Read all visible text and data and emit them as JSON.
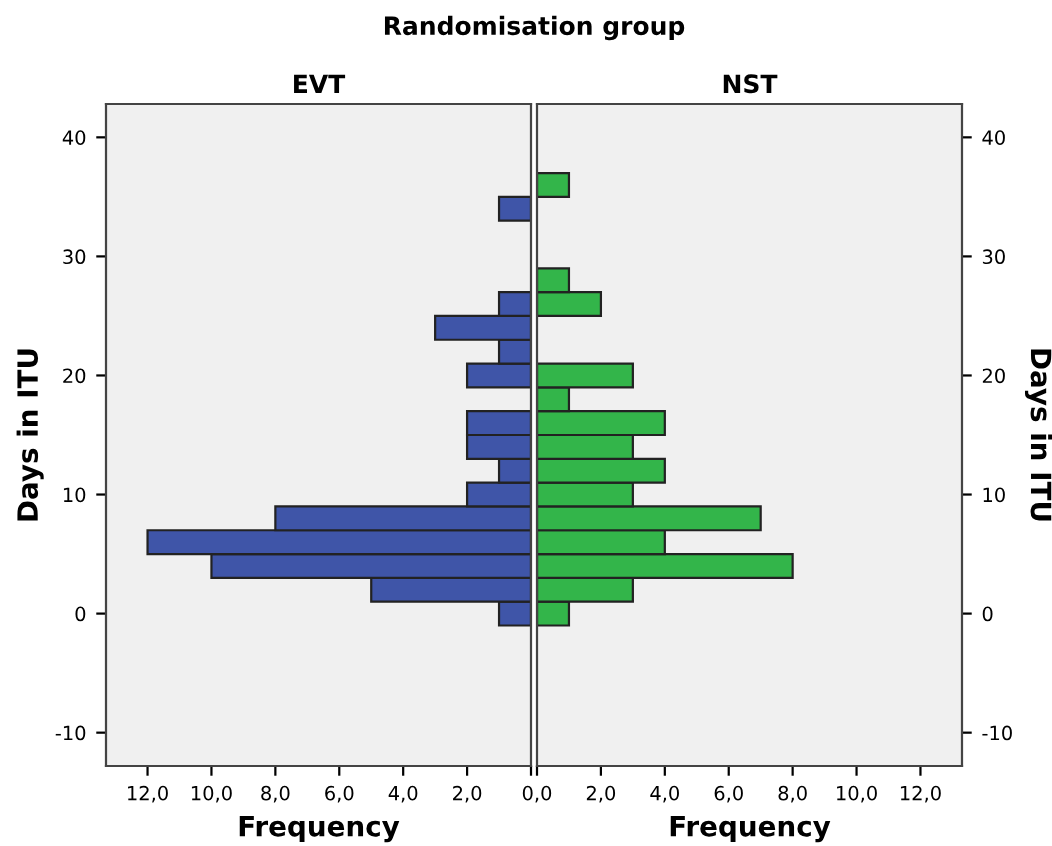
{
  "chart_data": [
    {
      "type": "bar",
      "orientation": "horizontal",
      "title": "EVT",
      "annotations": [
        "Randomisation group"
      ],
      "xlabel": "Frequency",
      "ylabel": "Days in ITU",
      "x": [
        0,
        2,
        4,
        6,
        8,
        10,
        12,
        14,
        16,
        18,
        20,
        22,
        24,
        26,
        28,
        30,
        32,
        34,
        36
      ],
      "values": [
        1,
        5,
        10,
        12,
        8,
        2,
        1,
        2,
        2,
        0,
        2,
        1,
        3,
        1,
        0,
        0,
        0,
        1,
        0
      ],
      "color": "#3f55a8",
      "xlim": [
        13.3,
        0
      ],
      "xticks": [
        {
          "value": 12,
          "label": "12,0"
        },
        {
          "value": 10,
          "label": "10,0"
        },
        {
          "value": 8,
          "label": "8,0"
        },
        {
          "value": 6,
          "label": "6,0"
        },
        {
          "value": 4,
          "label": "4,0"
        },
        {
          "value": 2,
          "label": "2,0"
        },
        {
          "value": 0,
          "label": null
        }
      ],
      "ylim": [
        -12.8,
        42.8
      ],
      "yticks": [
        -10,
        0,
        10,
        20,
        30,
        40
      ]
    },
    {
      "type": "bar",
      "orientation": "horizontal",
      "title": "NST",
      "xlabel": "Frequency",
      "ylabel": "Days in ITU",
      "x": [
        0,
        2,
        4,
        6,
        8,
        10,
        12,
        14,
        16,
        18,
        20,
        22,
        24,
        26,
        28,
        30,
        32,
        34,
        36
      ],
      "values": [
        1,
        3,
        8,
        4,
        7,
        3,
        4,
        3,
        4,
        1,
        3,
        0,
        0,
        2,
        1,
        0,
        0,
        0,
        1
      ],
      "color": "#33b54a",
      "xlim": [
        0,
        13.3
      ],
      "xticks": [
        {
          "value": 0,
          "label": "0,0"
        },
        {
          "value": 2,
          "label": "2,0"
        },
        {
          "value": 4,
          "label": "4,0"
        },
        {
          "value": 6,
          "label": "6,0"
        },
        {
          "value": 8,
          "label": "8,0"
        },
        {
          "value": 10,
          "label": "10,0"
        },
        {
          "value": 12,
          "label": "12,0"
        }
      ],
      "ylim": [
        -12.8,
        42.8
      ],
      "yticks": [
        -10,
        0,
        10,
        20,
        30,
        40
      ]
    }
  ]
}
